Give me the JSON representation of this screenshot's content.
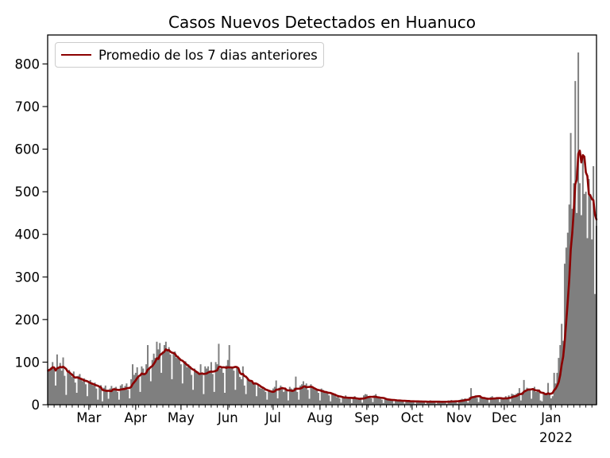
{
  "title": "Casos Nuevos Detectados en Huanuco",
  "legend": {
    "label": "Promedio de los 7 dias anteriores"
  },
  "colors": {
    "bars": "#7f7f7f",
    "line": "#8b0000",
    "text": "#000000",
    "legend_border": "#cccccc"
  },
  "y_axis": {
    "ticks": [
      "0",
      "100",
      "200",
      "300",
      "400",
      "500",
      "600",
      "700",
      "800"
    ]
  },
  "x_axis": {
    "month_labels": [
      "Mar",
      "Apr",
      "May",
      "Jun",
      "Jul",
      "Aug",
      "Sep",
      "Oct",
      "Nov",
      "Dec",
      "Jan"
    ],
    "year_label": "2022"
  },
  "chart_data": {
    "type": "bar",
    "title": "Casos Nuevos Detectados en Huanuco",
    "xlabel": "",
    "ylabel": "",
    "ylim": [
      0,
      868
    ],
    "grid": false,
    "legend_position": "upper left",
    "series": [
      {
        "name": "daily_new_cases",
        "type": "bar",
        "color": "#7f7f7f"
      },
      {
        "name": "Promedio de los 7 dias anteriores",
        "type": "line",
        "color": "#8b0000",
        "definition": "trailing 7-day mean of daily_new_cases"
      }
    ],
    "start_date": "2021-02-02",
    "end_date": "2022-01-31",
    "daily_values": [
      80,
      84,
      88,
      100,
      85,
      45,
      118,
      88,
      98,
      80,
      111,
      68,
      23,
      75,
      82,
      70,
      65,
      78,
      52,
      28,
      68,
      72,
      60,
      55,
      62,
      48,
      20,
      55,
      58,
      50,
      45,
      52,
      38,
      12,
      42,
      46,
      8,
      40,
      45,
      35,
      14,
      38,
      44,
      36,
      40,
      42,
      30,
      12,
      45,
      48,
      40,
      44,
      50,
      35,
      15,
      60,
      95,
      70,
      75,
      88,
      65,
      30,
      90,
      85,
      70,
      95,
      140,
      85,
      55,
      105,
      120,
      110,
      148,
      130,
      145,
      75,
      125,
      140,
      148,
      130,
      135,
      118,
      60,
      120,
      125,
      110,
      115,
      108,
      95,
      50,
      98,
      102,
      88,
      95,
      90,
      70,
      35,
      85,
      80,
      75,
      70,
      95,
      75,
      25,
      90,
      85,
      90,
      80,
      100,
      72,
      30,
      100,
      95,
      143,
      85,
      88,
      75,
      28,
      92,
      105,
      140,
      85,
      85,
      80,
      35,
      88,
      88,
      65,
      60,
      90,
      45,
      25,
      60,
      55,
      58,
      55,
      48,
      50,
      20,
      45,
      40,
      38,
      42,
      35,
      30,
      12,
      35,
      32,
      30,
      38,
      42,
      57,
      15,
      40,
      45,
      38,
      30,
      40,
      32,
      10,
      42,
      38,
      36,
      40,
      66,
      30,
      12,
      45,
      48,
      55,
      46,
      50,
      35,
      14,
      48,
      42,
      38,
      35,
      36,
      28,
      10,
      38,
      35,
      30,
      32,
      28,
      22,
      8,
      28,
      25,
      22,
      18,
      20,
      15,
      5,
      20,
      18,
      22,
      16,
      18,
      14,
      4,
      18,
      20,
      15,
      12,
      14,
      16,
      5,
      22,
      25,
      24,
      20,
      18,
      15,
      6,
      22,
      25,
      18,
      16,
      14,
      12,
      4,
      15,
      14,
      12,
      13,
      11,
      10,
      3,
      12,
      11,
      10,
      12,
      9,
      8,
      3,
      10,
      9,
      10,
      8,
      9,
      7,
      2,
      10,
      9,
      8,
      9,
      7,
      6,
      2,
      9,
      8,
      10,
      8,
      7,
      6,
      2,
      9,
      8,
      9,
      7,
      8,
      6,
      2,
      10,
      9,
      11,
      8,
      9,
      7,
      3,
      11,
      12,
      14,
      13,
      15,
      12,
      5,
      18,
      39,
      20,
      18,
      22,
      16,
      6,
      18,
      17,
      15,
      16,
      14,
      13,
      5,
      18,
      20,
      16,
      17,
      18,
      14,
      6,
      16,
      15,
      17,
      20,
      16,
      22,
      7,
      26,
      24,
      23,
      26,
      28,
      39,
      10,
      30,
      58,
      35,
      40,
      38,
      38,
      14,
      35,
      42,
      30,
      36,
      36,
      10,
      8,
      30,
      25,
      28,
      51,
      25,
      15,
      20,
      75,
      50,
      75,
      110,
      140,
      190,
      150,
      331,
      369,
      404,
      470,
      638,
      460,
      520,
      760,
      450,
      827,
      520,
      445,
      580,
      495,
      500,
      391,
      530,
      495,
      388,
      560,
      260,
      420
    ]
  }
}
